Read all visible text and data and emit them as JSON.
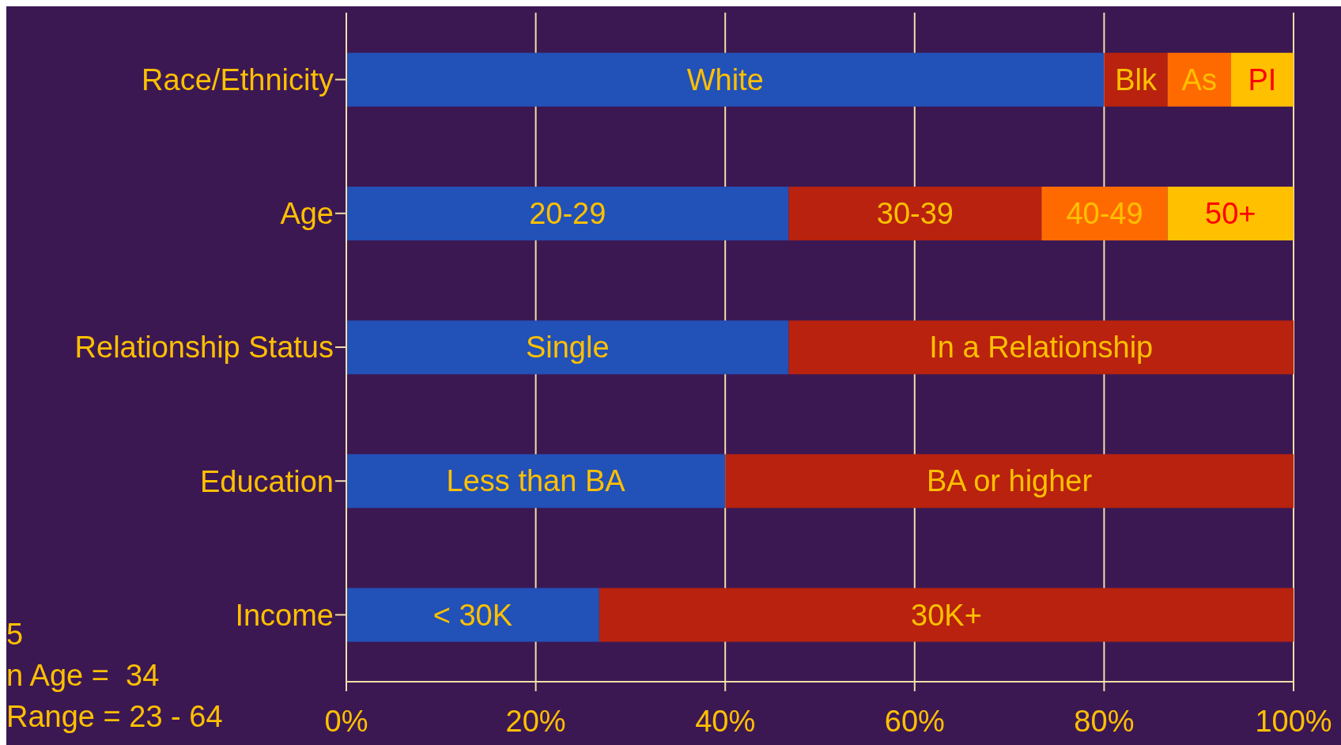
{
  "chart_data": {
    "type": "bar",
    "orientation": "horizontal",
    "stacked": true,
    "categories": [
      "Race/Ethnicity",
      "Age",
      "Relationship Status",
      "Education",
      "Income"
    ],
    "series": [
      {
        "name": "White",
        "color": "#2251b8",
        "values": [
          80,
          null,
          null,
          null,
          null
        ]
      },
      {
        "name": "Blk",
        "color": "#b8220e",
        "values": [
          6.7,
          null,
          null,
          null,
          null
        ]
      },
      {
        "name": "As",
        "color": "#ff6a00",
        "values": [
          6.7,
          null,
          null,
          null,
          null
        ]
      },
      {
        "name": "PI",
        "color": "#ffc000",
        "values": [
          6.6,
          null,
          null,
          null,
          null
        ]
      },
      {
        "name": "20-29",
        "color": "#2251b8",
        "values": [
          null,
          46.7,
          null,
          null,
          null
        ]
      },
      {
        "name": "30-39",
        "color": "#b8220e",
        "values": [
          null,
          26.7,
          null,
          null,
          null
        ]
      },
      {
        "name": "40-49",
        "color": "#ff6a00",
        "values": [
          null,
          13.3,
          null,
          null,
          null
        ]
      },
      {
        "name": "50+",
        "color": "#ffc000",
        "values": [
          null,
          13.3,
          null,
          null,
          null
        ]
      },
      {
        "name": "Single",
        "color": "#2251b8",
        "values": [
          null,
          null,
          46.7,
          null,
          null
        ]
      },
      {
        "name": "In a Relationship",
        "color": "#b8220e",
        "values": [
          null,
          null,
          53.3,
          null,
          null
        ]
      },
      {
        "name": "Less than BA",
        "color": "#2251b8",
        "values": [
          null,
          null,
          null,
          40,
          null
        ]
      },
      {
        "name": "BA or higher",
        "color": "#b8220e",
        "values": [
          null,
          null,
          null,
          60,
          null
        ]
      },
      {
        "name": "< 30K",
        "color": "#2251b8",
        "values": [
          null,
          null,
          null,
          null,
          26.7
        ]
      },
      {
        "name": "30K+",
        "color": "#b8220e",
        "values": [
          null,
          null,
          null,
          null,
          73.3
        ]
      }
    ],
    "xlim": [
      0,
      100
    ],
    "xticks": [
      {
        "value": 0,
        "label": "0%"
      },
      {
        "value": 20,
        "label": "20%"
      },
      {
        "value": 40,
        "label": "40%"
      },
      {
        "value": 60,
        "label": "60%"
      },
      {
        "value": 80,
        "label": "80%"
      },
      {
        "value": 100,
        "label": "100%"
      }
    ],
    "grid": "x",
    "legend": false,
    "annotations": [
      "5",
      "n Age =  34",
      "Range = 23 - 64"
    ]
  }
}
